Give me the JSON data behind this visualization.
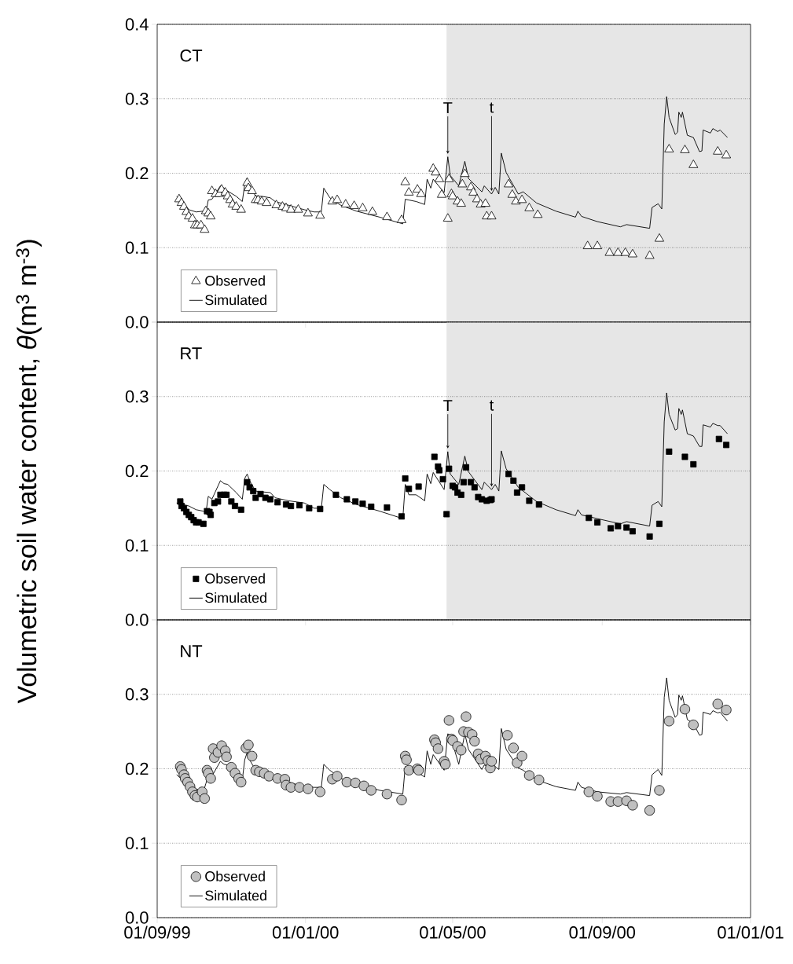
{
  "chart_data": [
    {
      "type": "line",
      "title": "CT",
      "xlim": [
        "1999-09-01",
        "2001-01-01"
      ],
      "ylim": [
        0,
        0.4
      ],
      "tick_labels": "y",
      "grid": "y",
      "legend": "bottom left",
      "xticks": [
        {
          "value": "1999-09-01",
          "label": null
        },
        {
          "value": "2000-01-01",
          "label": null
        },
        {
          "value": "2000-05-01",
          "label": null
        },
        {
          "value": "2000-09-01",
          "label": null
        },
        {
          "value": "2001-01-01",
          "label": null
        }
      ],
      "yticks": [
        {
          "value": 0,
          "label": "0.0"
        },
        {
          "value": 0.1,
          "label": "0.1"
        },
        {
          "value": 0.2,
          "label": "0.2"
        },
        {
          "value": 0.3,
          "label": "0.3"
        },
        {
          "value": 0.4,
          "label": "0.4"
        }
      ],
      "bands": [
        {
          "axis": "x",
          "from": "2000-04-26",
          "to": "2001-01-01",
          "color": "#e6e6e6"
        }
      ],
      "annotations": [
        {
          "text": "T",
          "x": "2000-04-27",
          "y": 0.222
        },
        {
          "text": "t",
          "x": "2000-06-02",
          "y": 0.172
        }
      ],
      "x": [
        "1999-09-17",
        "1999-09-27",
        "1999-10-03",
        "1999-10-09",
        "1999-10-11",
        "1999-10-13",
        "1999-10-16",
        "1999-10-23",
        "1999-10-26",
        "1999-10-29",
        "1999-11-05",
        "1999-11-10",
        "1999-11-12",
        "1999-11-14",
        "1999-11-16",
        "1999-11-21",
        "1999-11-26",
        "1999-12-03",
        "1999-12-07",
        "1999-12-18",
        "1999-12-31",
        "2000-01-08",
        "2000-01-14",
        "2000-01-16",
        "2000-01-21",
        "2000-01-30",
        "2000-02-12",
        "2000-03-02",
        "2000-03-21",
        "2000-03-23",
        "2000-03-26",
        "2000-04-01",
        "2000-04-08",
        "2000-04-10",
        "2000-04-13",
        "2000-04-15",
        "2000-04-24",
        "2000-04-27",
        "2000-04-29",
        "2000-05-06",
        "2000-05-11",
        "2000-05-14",
        "2000-05-25",
        "2000-05-27",
        "2000-06-02",
        "2000-06-05",
        "2000-06-08",
        "2000-06-10",
        "2000-06-14",
        "2000-06-24",
        "2000-06-28",
        "2000-07-09",
        "2000-07-25",
        "2000-08-10",
        "2000-08-12",
        "2000-08-15",
        "2000-08-28",
        "2000-09-16",
        "2000-09-21",
        "2000-10-10",
        "2000-10-12",
        "2000-10-17",
        "2000-10-20",
        "2000-10-22",
        "2000-10-24",
        "2000-10-26",
        "2000-10-31",
        "2000-11-02",
        "2000-11-03",
        "2000-11-05",
        "2000-11-06",
        "2000-11-10",
        "2000-11-15",
        "2000-11-20",
        "2000-11-22",
        "2000-11-23",
        "2000-11-29",
        "2000-12-01",
        "2000-12-05",
        "2000-12-07",
        "2000-12-13"
      ],
      "series": [
        {
          "name": "Observed",
          "type": "scatter",
          "marker": "triangle",
          "color": "#ffffff",
          "x": [
            "1999-09-19",
            "1999-09-21",
            "1999-09-23",
            "1999-09-25",
            "1999-09-27",
            "1999-09-30",
            "1999-10-02",
            "1999-10-04",
            "1999-10-07",
            "1999-10-10",
            "1999-10-11",
            "1999-10-13",
            "1999-10-15",
            "1999-10-16",
            "1999-10-19",
            "1999-10-22",
            "1999-10-24",
            "1999-10-27",
            "1999-10-29",
            "1999-10-31",
            "1999-11-02",
            "1999-11-05",
            "1999-11-09",
            "1999-11-14",
            "1999-11-15",
            "1999-11-18",
            "1999-11-21",
            "1999-11-23",
            "1999-11-26",
            "1999-11-30",
            "1999-12-08",
            "1999-12-13",
            "1999-12-16",
            "1999-12-20",
            "1999-12-26",
            "2000-01-03",
            "2000-01-13",
            "2000-01-23",
            "2000-01-27",
            "2000-02-03",
            "2000-02-10",
            "2000-02-17",
            "2000-02-25",
            "2000-03-08",
            "2000-03-20",
            "2000-03-23",
            "2000-03-26",
            "2000-04-02",
            "2000-04-05",
            "2000-04-15",
            "2000-04-17",
            "2000-04-20",
            "2000-04-22",
            "2000-04-27",
            "2000-04-28",
            "2000-04-30",
            "2000-05-01",
            "2000-05-05",
            "2000-05-08",
            "2000-05-09",
            "2000-05-11",
            "2000-05-16",
            "2000-05-18",
            "2000-05-21",
            "2000-05-24",
            "2000-05-28",
            "2000-05-29",
            "2000-06-02",
            "2000-06-16",
            "2000-06-19",
            "2000-06-22",
            "2000-06-27",
            "2000-07-03",
            "2000-07-10",
            "2000-08-20",
            "2000-08-28",
            "2000-09-07",
            "2000-09-14",
            "2000-09-20",
            "2000-09-26",
            "2000-10-10",
            "2000-10-18",
            "2000-10-26",
            "2000-11-08",
            "2000-11-15",
            "2000-12-05",
            "2000-12-12"
          ],
          "values": [
            0.165,
            0.16,
            0.155,
            0.148,
            0.142,
            0.139,
            0.13,
            0.13,
            0.13,
            0.124,
            0.149,
            0.146,
            0.142,
            0.176,
            0.172,
            0.172,
            0.178,
            0.174,
            0.169,
            0.164,
            0.158,
            0.155,
            0.151,
            0.187,
            0.18,
            0.176,
            0.164,
            0.164,
            0.162,
            0.16,
            0.157,
            0.155,
            0.153,
            0.151,
            0.151,
            0.146,
            0.143,
            0.162,
            0.164,
            0.158,
            0.156,
            0.153,
            0.148,
            0.141,
            0.137,
            0.188,
            0.174,
            0.178,
            0.172,
            0.206,
            0.201,
            0.192,
            0.171,
            0.139,
            0.192,
            0.172,
            0.169,
            0.162,
            0.159,
            0.185,
            0.199,
            0.181,
            0.174,
            0.165,
            0.158,
            0.159,
            0.142,
            0.142,
            0.185,
            0.171,
            0.162,
            0.164,
            0.153,
            0.144,
            0.102,
            0.102,
            0.093,
            0.093,
            0.093,
            0.091,
            0.089,
            0.112,
            0.232,
            0.231,
            0.211,
            0.229,
            0.224
          ]
        },
        {
          "name": "Simulated",
          "color": "#000000",
          "values": [
            0.169,
            0.151,
            0.148,
            0.149,
            0.146,
            0.164,
            0.165,
            0.183,
            0.18,
            0.176,
            0.169,
            0.162,
            0.185,
            0.194,
            0.183,
            0.169,
            0.169,
            0.167,
            0.162,
            0.157,
            0.151,
            0.148,
            0.148,
            0.18,
            0.167,
            0.157,
            0.149,
            0.141,
            0.132,
            0.165,
            0.164,
            0.162,
            0.158,
            0.192,
            0.18,
            0.192,
            0.174,
            0.222,
            0.197,
            0.183,
            0.216,
            0.193,
            0.175,
            0.183,
            0.172,
            0.181,
            0.172,
            0.227,
            0.201,
            0.172,
            0.175,
            0.16,
            0.149,
            0.141,
            0.149,
            0.142,
            0.135,
            0.128,
            0.131,
            0.126,
            0.154,
            0.159,
            0.152,
            0.266,
            0.303,
            0.275,
            0.252,
            0.255,
            0.282,
            0.275,
            0.282,
            0.251,
            0.248,
            0.229,
            0.23,
            0.258,
            0.254,
            0.26,
            0.256,
            0.258,
            0.248
          ]
        }
      ]
    },
    {
      "type": "line",
      "title": "RT",
      "ylabel": "Volumetric soil water content, *θ*(m$^{3}$ m$^{-3}$)",
      "xlim": [
        "1999-09-01",
        "2001-01-01"
      ],
      "ylim": [
        0,
        0.4
      ],
      "tick_labels": "y",
      "grid": "y",
      "legend": "bottom left",
      "xticks": [
        {
          "value": "1999-09-01",
          "label": null
        },
        {
          "value": "2000-01-01",
          "label": null
        },
        {
          "value": "2000-05-01",
          "label": null
        },
        {
          "value": "2000-09-01",
          "label": null
        },
        {
          "value": "2001-01-01",
          "label": null
        }
      ],
      "yticks": [
        {
          "value": 0,
          "label": "0.0"
        },
        {
          "value": 0.1,
          "label": "0.1"
        },
        {
          "value": 0.2,
          "label": "0.2"
        },
        {
          "value": 0.3,
          "label": "0.3"
        },
        {
          "value": 0.4,
          "label": null
        }
      ],
      "bands": [
        {
          "axis": "x",
          "from": "2000-04-26",
          "to": "2001-01-01",
          "color": "#e6e6e6"
        }
      ],
      "annotations": [
        {
          "text": "T",
          "x": "2000-04-27",
          "y": 0.226
        },
        {
          "text": "t",
          "x": "2000-06-02",
          "y": 0.175
        }
      ],
      "x": [
        "1999-09-17",
        "1999-09-27",
        "1999-10-03",
        "1999-10-09",
        "1999-10-11",
        "1999-10-13",
        "1999-10-16",
        "1999-10-23",
        "1999-10-26",
        "1999-10-29",
        "1999-11-05",
        "1999-11-10",
        "1999-11-12",
        "1999-11-14",
        "1999-11-16",
        "1999-11-21",
        "1999-11-26",
        "1999-12-03",
        "1999-12-07",
        "1999-12-18",
        "1999-12-31",
        "2000-01-08",
        "2000-01-14",
        "2000-01-16",
        "2000-01-21",
        "2000-01-30",
        "2000-02-12",
        "2000-03-02",
        "2000-03-21",
        "2000-03-23",
        "2000-03-26",
        "2000-04-01",
        "2000-04-08",
        "2000-04-10",
        "2000-04-13",
        "2000-04-15",
        "2000-04-24",
        "2000-04-27",
        "2000-04-29",
        "2000-05-06",
        "2000-05-11",
        "2000-05-14",
        "2000-05-25",
        "2000-05-27",
        "2000-06-02",
        "2000-06-05",
        "2000-06-08",
        "2000-06-10",
        "2000-06-14",
        "2000-06-24",
        "2000-06-28",
        "2000-07-09",
        "2000-07-25",
        "2000-08-10",
        "2000-08-12",
        "2000-08-15",
        "2000-08-28",
        "2000-09-16",
        "2000-09-21",
        "2000-10-10",
        "2000-10-12",
        "2000-10-17",
        "2000-10-20",
        "2000-10-22",
        "2000-10-24",
        "2000-10-26",
        "2000-10-31",
        "2000-11-02",
        "2000-11-03",
        "2000-11-05",
        "2000-11-06",
        "2000-11-10",
        "2000-11-15",
        "2000-11-20",
        "2000-11-22",
        "2000-11-23",
        "2000-11-29",
        "2000-12-01",
        "2000-12-05",
        "2000-12-07",
        "2000-12-13"
      ],
      "series": [
        {
          "name": "Observed",
          "type": "scatter",
          "marker": "square",
          "color": "#000000",
          "x": [
            "1999-09-20",
            "1999-09-21",
            "1999-09-23",
            "1999-09-25",
            "1999-09-27",
            "1999-09-29",
            "1999-10-01",
            "1999-10-03",
            "1999-10-05",
            "1999-10-09",
            "1999-10-12",
            "1999-10-14",
            "1999-10-15",
            "1999-10-18",
            "1999-10-21",
            "1999-10-23",
            "1999-10-26",
            "1999-10-28",
            "1999-11-01",
            "1999-11-04",
            "1999-11-09",
            "1999-11-14",
            "1999-11-16",
            "1999-11-19",
            "1999-11-21",
            "1999-11-25",
            "1999-11-29",
            "1999-12-03",
            "1999-12-09",
            "1999-12-16",
            "1999-12-20",
            "1999-12-27",
            "2000-01-04",
            "2000-01-13",
            "2000-01-26",
            "2000-02-04",
            "2000-02-11",
            "2000-02-17",
            "2000-02-24",
            "2000-03-08",
            "2000-03-20",
            "2000-03-23",
            "2000-03-26",
            "2000-04-03",
            "2000-04-16",
            "2000-04-19",
            "2000-04-20",
            "2000-04-23",
            "2000-04-26",
            "2000-04-28",
            "2000-05-01",
            "2000-05-03",
            "2000-05-05",
            "2000-05-08",
            "2000-05-10",
            "2000-05-12",
            "2000-05-16",
            "2000-05-19",
            "2000-05-22",
            "2000-05-25",
            "2000-05-29",
            "2000-06-01",
            "2000-06-02",
            "2000-06-16",
            "2000-06-20",
            "2000-06-23",
            "2000-06-27",
            "2000-07-03",
            "2000-07-11",
            "2000-08-21",
            "2000-08-28",
            "2000-09-08",
            "2000-09-14",
            "2000-09-21",
            "2000-09-26",
            "2000-10-10",
            "2000-10-18",
            "2000-10-26",
            "2000-11-08",
            "2000-11-15",
            "2000-12-06",
            "2000-12-12"
          ],
          "values": [
            0.159,
            0.153,
            0.15,
            0.145,
            0.141,
            0.138,
            0.134,
            0.131,
            0.131,
            0.129,
            0.146,
            0.145,
            0.141,
            0.157,
            0.159,
            0.168,
            0.168,
            0.168,
            0.159,
            0.153,
            0.148,
            0.185,
            0.178,
            0.173,
            0.164,
            0.169,
            0.164,
            0.162,
            0.158,
            0.155,
            0.153,
            0.154,
            0.15,
            0.149,
            0.168,
            0.162,
            0.159,
            0.156,
            0.152,
            0.151,
            0.139,
            0.19,
            0.176,
            0.179,
            0.219,
            0.206,
            0.201,
            0.189,
            0.142,
            0.203,
            0.18,
            0.178,
            0.171,
            0.168,
            0.185,
            0.205,
            0.185,
            0.178,
            0.165,
            0.162,
            0.16,
            0.161,
            0.162,
            0.196,
            0.187,
            0.171,
            0.178,
            0.16,
            0.155,
            0.137,
            0.131,
            0.123,
            0.126,
            0.124,
            0.119,
            0.112,
            0.129,
            0.226,
            0.219,
            0.209,
            0.243,
            0.235
          ]
        },
        {
          "name": "Simulated",
          "color": "#000000",
          "values": [
            0.157,
            0.153,
            0.148,
            0.146,
            0.143,
            0.166,
            0.162,
            0.187,
            0.183,
            0.182,
            0.171,
            0.162,
            0.19,
            0.196,
            0.187,
            0.173,
            0.172,
            0.171,
            0.164,
            0.16,
            0.157,
            0.15,
            0.15,
            0.182,
            0.175,
            0.164,
            0.155,
            0.146,
            0.136,
            0.182,
            0.168,
            0.168,
            0.16,
            0.196,
            0.183,
            0.198,
            0.175,
            0.226,
            0.196,
            0.182,
            0.22,
            0.199,
            0.175,
            0.185,
            0.175,
            0.182,
            0.173,
            0.227,
            0.203,
            0.178,
            0.173,
            0.159,
            0.148,
            0.14,
            0.148,
            0.141,
            0.136,
            0.129,
            0.132,
            0.126,
            0.154,
            0.159,
            0.152,
            0.266,
            0.305,
            0.276,
            0.255,
            0.257,
            0.284,
            0.276,
            0.282,
            0.25,
            0.247,
            0.233,
            0.233,
            0.262,
            0.259,
            0.264,
            0.261,
            0.261,
            0.25
          ]
        }
      ]
    },
    {
      "type": "line",
      "title": "NT",
      "xlim": [
        "1999-09-01",
        "2001-01-01"
      ],
      "ylim": [
        0,
        0.4
      ],
      "grid": "y",
      "legend": "bottom left",
      "xticks": [
        {
          "value": "1999-09-01",
          "label": "01/09/99"
        },
        {
          "value": "2000-01-01",
          "label": "01/01/00"
        },
        {
          "value": "2000-05-01",
          "label": "01/05/00"
        },
        {
          "value": "2000-09-01",
          "label": "01/09/00"
        },
        {
          "value": "2001-01-01",
          "label": "01/01/01"
        }
      ],
      "yticks": [
        {
          "value": 0,
          "label": "0.0"
        },
        {
          "value": 0.1,
          "label": "0.1"
        },
        {
          "value": 0.2,
          "label": "0.2"
        },
        {
          "value": 0.3,
          "label": "0.3"
        },
        {
          "value": 0.4,
          "label": null
        }
      ],
      "x": [
        "1999-09-17",
        "1999-09-27",
        "1999-10-03",
        "1999-10-09",
        "1999-10-11",
        "1999-10-13",
        "1999-10-16",
        "1999-10-23",
        "1999-10-26",
        "1999-10-29",
        "1999-11-05",
        "1999-11-10",
        "1999-11-12",
        "1999-11-14",
        "1999-11-16",
        "1999-11-21",
        "1999-11-26",
        "1999-12-03",
        "1999-12-07",
        "1999-12-18",
        "1999-12-31",
        "2000-01-08",
        "2000-01-14",
        "2000-01-16",
        "2000-01-21",
        "2000-01-30",
        "2000-02-12",
        "2000-03-02",
        "2000-03-21",
        "2000-03-23",
        "2000-03-26",
        "2000-04-01",
        "2000-04-08",
        "2000-04-10",
        "2000-04-13",
        "2000-04-15",
        "2000-04-24",
        "2000-04-27",
        "2000-04-29",
        "2000-05-06",
        "2000-05-11",
        "2000-05-14",
        "2000-05-25",
        "2000-05-27",
        "2000-06-02",
        "2000-06-05",
        "2000-06-08",
        "2000-06-10",
        "2000-06-14",
        "2000-06-24",
        "2000-06-28",
        "2000-07-09",
        "2000-07-25",
        "2000-08-10",
        "2000-08-12",
        "2000-08-15",
        "2000-08-28",
        "2000-09-16",
        "2000-09-21",
        "2000-10-10",
        "2000-10-12",
        "2000-10-17",
        "2000-10-20",
        "2000-10-22",
        "2000-10-24",
        "2000-10-26",
        "2000-10-31",
        "2000-11-02",
        "2000-11-03",
        "2000-11-05",
        "2000-11-06",
        "2000-11-10",
        "2000-11-15",
        "2000-11-20",
        "2000-11-22",
        "2000-11-23",
        "2000-11-29",
        "2000-12-01",
        "2000-12-05",
        "2000-12-07",
        "2000-12-13"
      ],
      "series": [
        {
          "name": "Observed",
          "type": "scatter",
          "marker": "circle",
          "color": "#c0c0c0",
          "x": [
            "1999-09-20",
            "1999-09-21",
            "1999-09-23",
            "1999-09-24",
            "1999-09-26",
            "1999-09-28",
            "1999-09-30",
            "1999-10-02",
            "1999-10-04",
            "1999-10-08",
            "1999-10-10",
            "1999-10-12",
            "1999-10-13",
            "1999-10-15",
            "1999-10-17",
            "1999-10-18",
            "1999-10-21",
            "1999-10-24",
            "1999-10-27",
            "1999-10-28",
            "1999-11-01",
            "1999-11-04",
            "1999-11-07",
            "1999-11-09",
            "1999-11-13",
            "1999-11-15",
            "1999-11-18",
            "1999-11-21",
            "1999-11-24",
            "1999-11-28",
            "1999-12-02",
            "1999-12-09",
            "1999-12-15",
            "1999-12-16",
            "1999-12-20",
            "1999-12-27",
            "2000-01-03",
            "2000-01-13",
            "2000-01-23",
            "2000-01-27",
            "2000-02-04",
            "2000-02-11",
            "2000-02-18",
            "2000-02-24",
            "2000-03-08",
            "2000-03-20",
            "2000-03-23",
            "2000-03-24",
            "2000-03-26",
            "2000-04-02",
            "2000-04-03",
            "2000-04-16",
            "2000-04-17",
            "2000-04-19",
            "2000-04-24",
            "2000-04-25",
            "2000-04-28",
            "2000-04-30",
            "2000-05-01",
            "2000-05-05",
            "2000-05-08",
            "2000-05-10",
            "2000-05-12",
            "2000-05-14",
            "2000-05-17",
            "2000-05-19",
            "2000-05-22",
            "2000-05-24",
            "2000-05-28",
            "2000-05-30",
            "2000-06-01",
            "2000-06-02",
            "2000-06-15",
            "2000-06-20",
            "2000-06-23",
            "2000-06-27",
            "2000-07-03",
            "2000-07-11",
            "2000-08-21",
            "2000-08-28",
            "2000-09-08",
            "2000-09-14",
            "2000-09-21",
            "2000-09-26",
            "2000-10-10",
            "2000-10-18",
            "2000-10-26",
            "2000-11-08",
            "2000-11-15",
            "2000-12-05",
            "2000-12-12"
          ],
          "values": [
            0.203,
            0.199,
            0.192,
            0.187,
            0.182,
            0.176,
            0.169,
            0.164,
            0.162,
            0.169,
            0.16,
            0.198,
            0.194,
            0.187,
            0.227,
            0.215,
            0.222,
            0.231,
            0.224,
            0.216,
            0.202,
            0.194,
            0.187,
            0.182,
            0.228,
            0.232,
            0.217,
            0.198,
            0.196,
            0.194,
            0.19,
            0.187,
            0.186,
            0.178,
            0.175,
            0.175,
            0.173,
            0.169,
            0.186,
            0.19,
            0.182,
            0.181,
            0.177,
            0.171,
            0.166,
            0.158,
            0.217,
            0.212,
            0.198,
            0.2,
            0.198,
            0.239,
            0.235,
            0.227,
            0.21,
            0.206,
            0.265,
            0.24,
            0.238,
            0.23,
            0.225,
            0.25,
            0.27,
            0.249,
            0.246,
            0.237,
            0.22,
            0.213,
            0.217,
            0.211,
            0.201,
            0.21,
            0.245,
            0.228,
            0.208,
            0.217,
            0.191,
            0.185,
            0.169,
            0.163,
            0.156,
            0.156,
            0.157,
            0.151,
            0.144,
            0.171,
            0.264,
            0.28,
            0.259,
            0.287,
            0.279
          ]
        },
        {
          "name": "Simulated",
          "color": "#000000",
          "values": [
            0.192,
            0.178,
            0.173,
            0.169,
            0.18,
            0.19,
            0.19,
            0.21,
            0.206,
            0.205,
            0.194,
            0.185,
            0.212,
            0.222,
            0.212,
            0.198,
            0.194,
            0.192,
            0.187,
            0.182,
            0.176,
            0.175,
            0.175,
            0.206,
            0.198,
            0.187,
            0.18,
            0.171,
            0.166,
            0.203,
            0.198,
            0.196,
            0.189,
            0.224,
            0.206,
            0.219,
            0.198,
            0.247,
            0.245,
            0.206,
            0.247,
            0.226,
            0.199,
            0.205,
            0.201,
            0.203,
            0.199,
            0.254,
            0.226,
            0.201,
            0.198,
            0.185,
            0.176,
            0.171,
            0.182,
            0.175,
            0.169,
            0.166,
            0.168,
            0.164,
            0.192,
            0.199,
            0.191,
            0.296,
            0.322,
            0.292,
            0.269,
            0.273,
            0.299,
            0.292,
            0.298,
            0.266,
            0.261,
            0.245,
            0.246,
            0.276,
            0.273,
            0.278,
            0.275,
            0.276,
            0.264
          ]
        }
      ]
    }
  ]
}
